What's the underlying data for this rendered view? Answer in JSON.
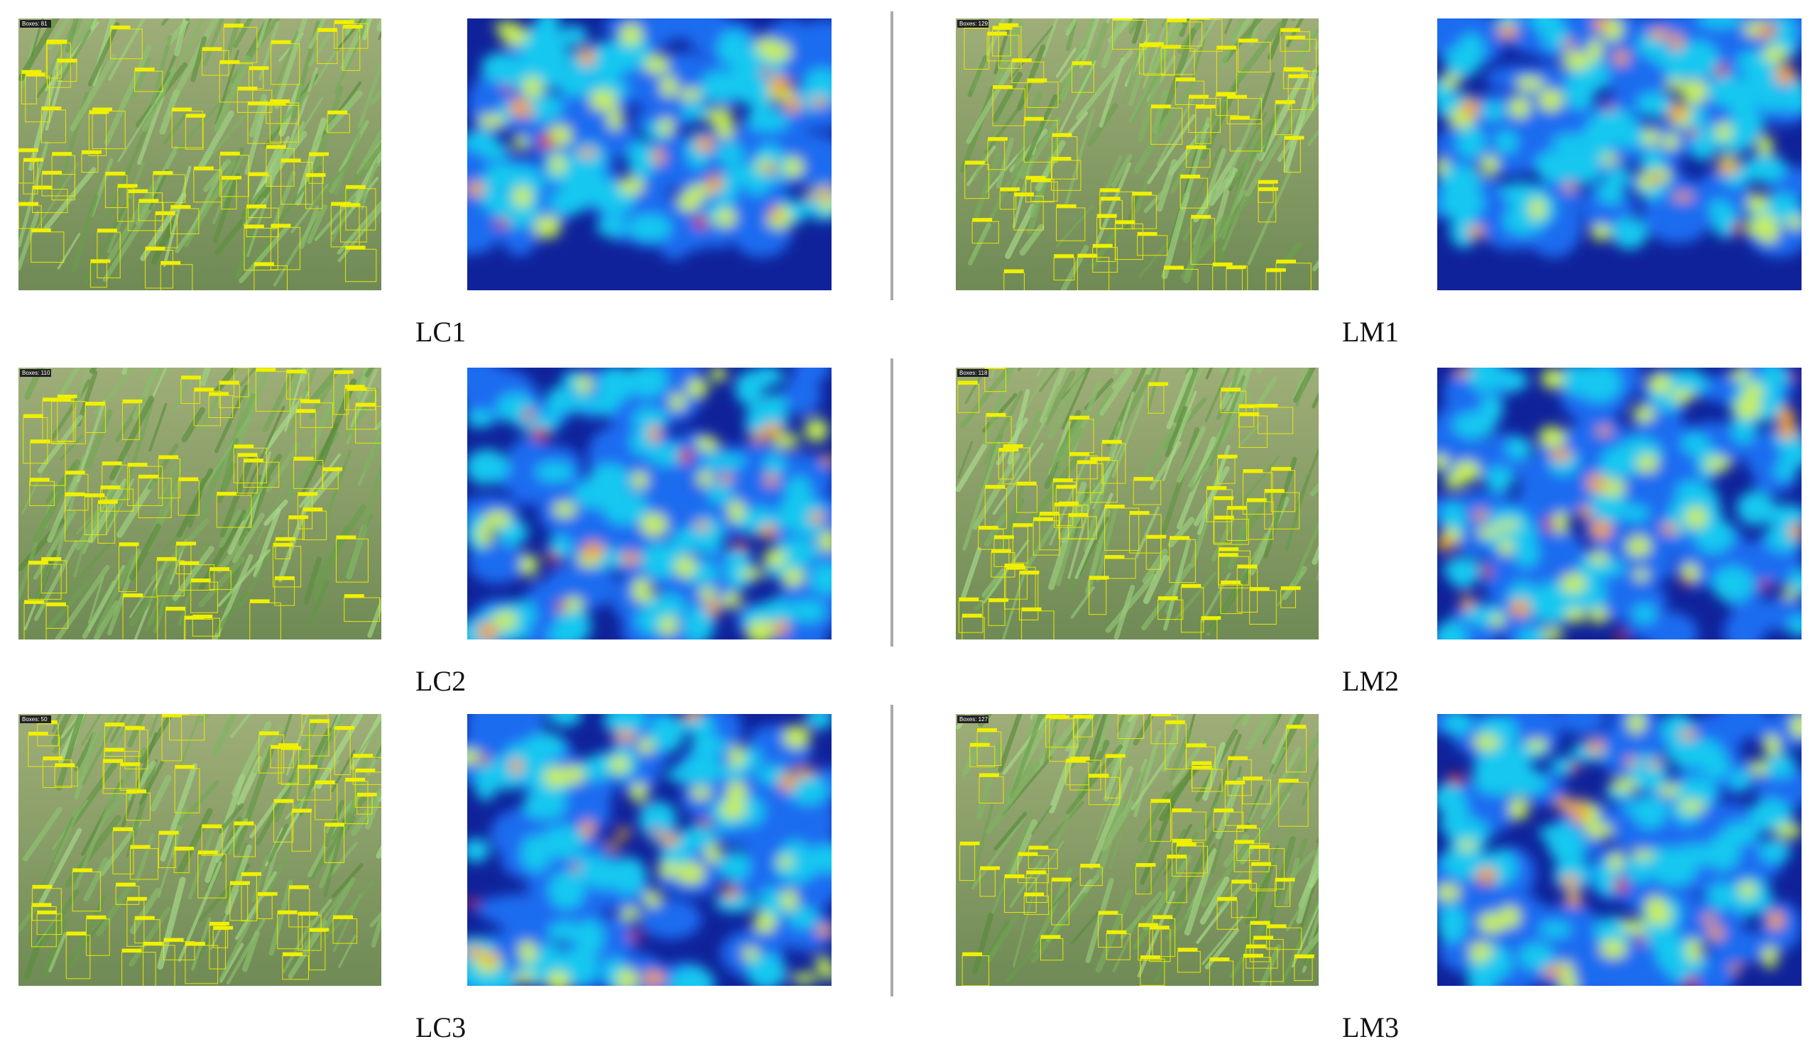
{
  "panels": [
    {
      "label": "LC1",
      "box_count": "Boxes: 81"
    },
    {
      "label": "LM1",
      "box_count": "Boxes: 129"
    },
    {
      "label": "LC2",
      "box_count": "Boxes: 110"
    },
    {
      "label": "LM2",
      "box_count": "Boxes: 118"
    },
    {
      "label": "LC3",
      "box_count": "Boxes: 50"
    },
    {
      "label": "LM3",
      "box_count": "Boxes: 127"
    }
  ]
}
